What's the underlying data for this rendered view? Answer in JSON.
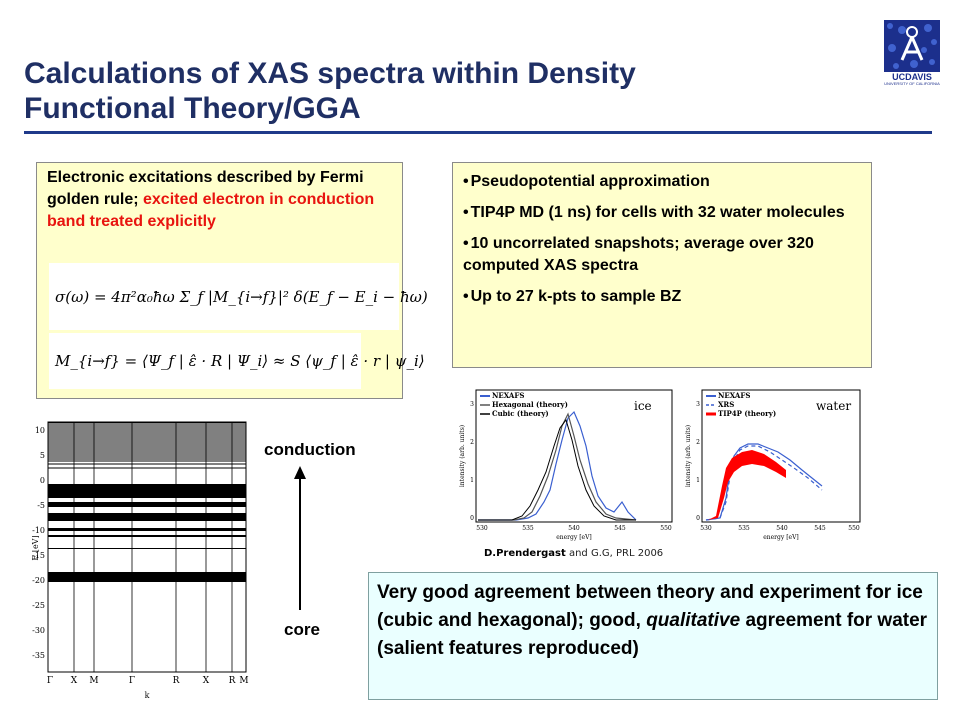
{
  "title": {
    "line1": "Calculations of XAS spectra within Density",
    "line2": "Functional Theory/GGA"
  },
  "logo": {
    "text": "UCDAVIS",
    "subtitle": "UNIVERSITY OF CALIFORNIA",
    "icon": "uc-davis-logo"
  },
  "left_box": {
    "intro_black": "Electronic excitations described by Fermi golden rule; ",
    "intro_red": "excited electron in conduction band treated explicitly",
    "equation1": "σ(ω) = 4π²α₀ħω Σ_f |M_{i→f}|² δ(E_f − E_i − ħω)",
    "equation2": "M_{i→f} = ⟨Ψ_f | ε̂ · R | Ψ_i⟩ ≈ S ⟨ψ_f | ε̂ · r | ψ_i⟩"
  },
  "right_box": {
    "bullets": [
      "Pseudopotential approximation",
      "TIP4P MD (1 ns) for cells with 32 water molecules",
      "10 uncorrelated snapshots; average over 320 computed XAS spectra",
      "Up to 27 k-pts to sample BZ"
    ]
  },
  "band_plot": {
    "ylabel": "E [eV]",
    "yticks": [
      "10",
      "5",
      "0",
      "-5",
      "-10",
      "-15",
      "-20",
      "-25",
      "-30",
      "-35"
    ],
    "xticks": [
      "Γ",
      "X",
      "M",
      "Γ",
      "R",
      "X",
      "R",
      "M"
    ],
    "xlabel": "k"
  },
  "arrow": {
    "top_label": "conduction",
    "bottom_label": "core"
  },
  "plots": {
    "ice": {
      "label": "ice",
      "legend": [
        "NEXAFS",
        "Hexagonal (theory)",
        "Cubic (theory)"
      ],
      "xlabel": "energy [eV]",
      "ylabel": "intensity (arb. units)",
      "xticks": [
        "530",
        "535",
        "540",
        "545",
        "550"
      ],
      "yticks": [
        "0",
        "1",
        "2",
        "3"
      ]
    },
    "water": {
      "label": "water",
      "legend": [
        "NEXAFS",
        "XRS",
        "TIP4P (theory)"
      ],
      "xlabel": "energy [eV]",
      "ylabel": "intensity (arb. units)",
      "xticks": [
        "530",
        "535",
        "540",
        "545",
        "550"
      ],
      "yticks": [
        "0",
        "1",
        "2",
        "3"
      ]
    },
    "colors": {
      "experiment": "#3a5fd0",
      "theory": "#ff0000",
      "hex": "#555555",
      "cubic": "#000000"
    }
  },
  "credit": {
    "authors": "D.Prendergast",
    "rest": " and G.G, PRL 2006"
  },
  "conclusion": {
    "part1": "Very good agreement between theory and experiment for ice (cubic and hexagonal); good, ",
    "italic": "qualitative",
    "part2": " agreement for water (salient features reproduced)"
  }
}
